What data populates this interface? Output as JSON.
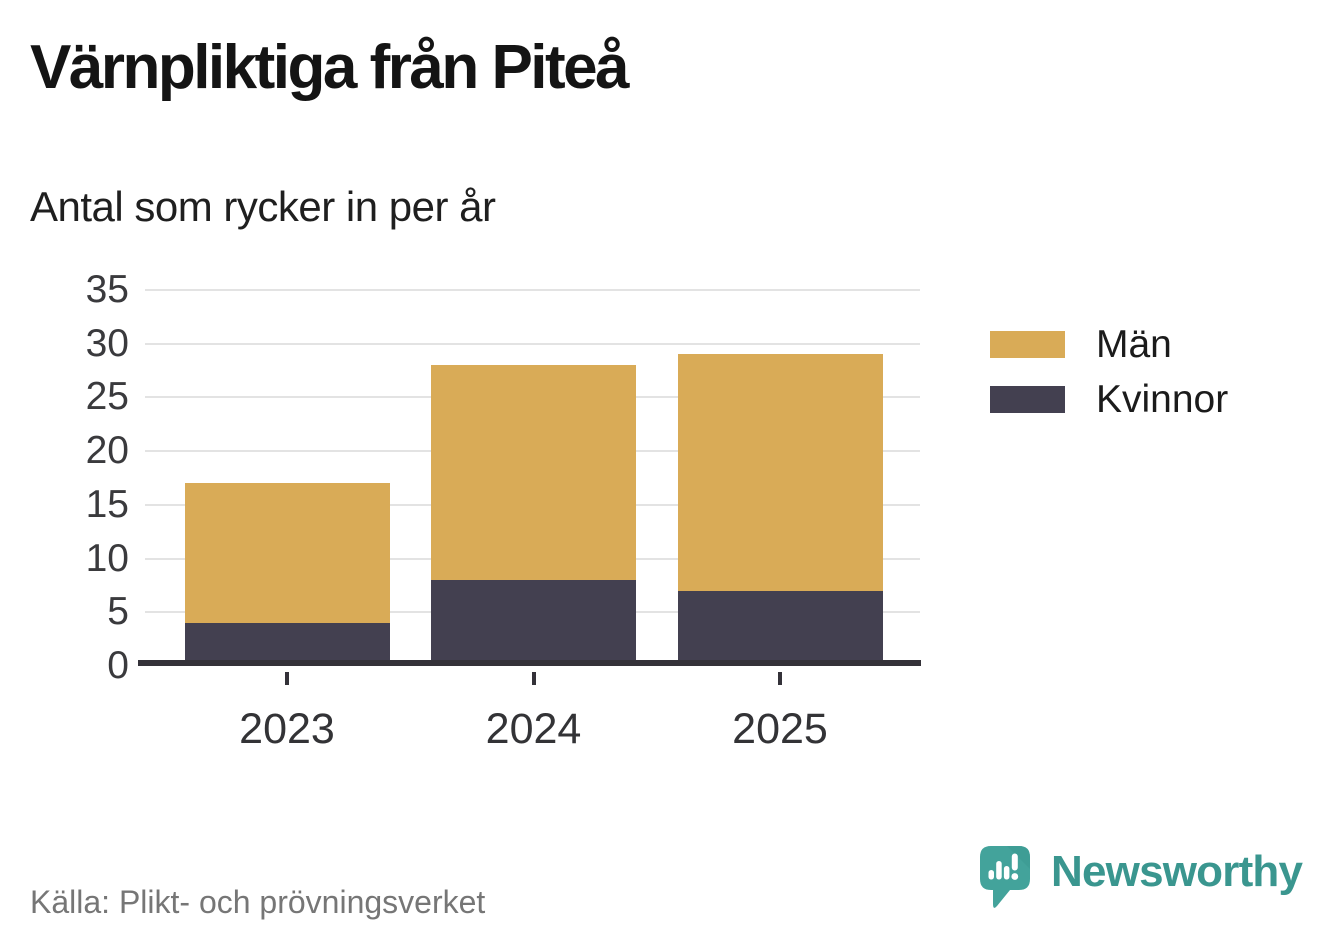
{
  "header": {
    "title": "Värnpliktiga från Piteå",
    "subtitle": "Antal som rycker in per år"
  },
  "chart_data": {
    "type": "bar",
    "stacked": true,
    "title": "Värnpliktiga från Piteå",
    "subtitle": "Antal som rycker in per år",
    "categories": [
      "2023",
      "2024",
      "2025"
    ],
    "series": [
      {
        "name": "Män",
        "color": "#D9AB57",
        "values": [
          13,
          20,
          22
        ]
      },
      {
        "name": "Kvinnor",
        "color": "#434050",
        "values": [
          4,
          8,
          7
        ]
      }
    ],
    "stack_order_bottom_to_top": [
      "Kvinnor",
      "Män"
    ],
    "totals": [
      17,
      28,
      29
    ],
    "xlabel": "",
    "ylabel": "",
    "ylim": [
      0,
      35
    ],
    "yticks": [
      0,
      5,
      10,
      15,
      20,
      25,
      30,
      35
    ],
    "grid": true,
    "legend_position": "right"
  },
  "footer": {
    "source": "Källa: Plikt- och prövningsverket",
    "brand": "Newsworthy"
  },
  "colors": {
    "men": "#D9AB57",
    "women": "#434050",
    "axis": "#343239",
    "gridline": "#E3E3E3",
    "brand_teal": "#3A968F",
    "source_gray": "#767676"
  }
}
